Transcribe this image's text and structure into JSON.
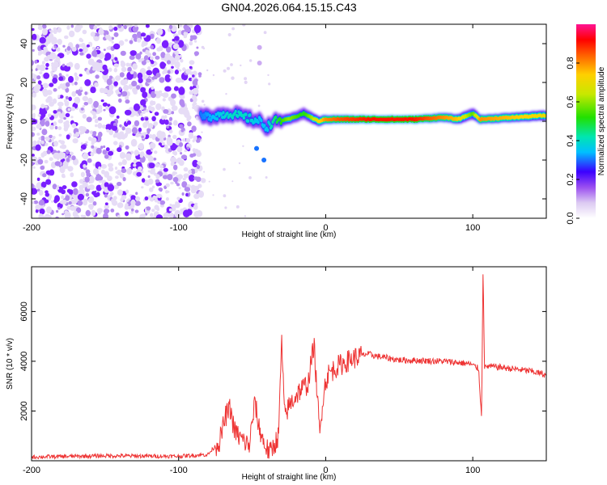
{
  "figure_title": "GN04.2026.064.15.15.C43",
  "chart_data": [
    {
      "type": "heatmap",
      "title": "GN04.2026.064.15.15.C43",
      "xlabel": "Height of straight line (km)",
      "ylabel": "Frequency (Hz)",
      "xlim": [
        -200,
        150
      ],
      "ylim": [
        -50,
        50
      ],
      "xticks": [
        -200,
        -100,
        0,
        100
      ],
      "xtick_labels": [
        "-200",
        "-100",
        "0",
        "100"
      ],
      "yticks": [
        -40,
        -20,
        0,
        20,
        40
      ],
      "ytick_labels": [
        "-40",
        "-20",
        "0",
        "20",
        "40"
      ],
      "noise_region_x": [
        -200,
        -85
      ],
      "spectral_line": {
        "description": "dominant frequency track near 0-2 Hz",
        "x": [
          -85,
          -75,
          -65,
          -55,
          -45,
          -40,
          -35,
          -25,
          -15,
          -5,
          0,
          10,
          30,
          60,
          80,
          90,
          100,
          105,
          150
        ],
        "freq": [
          2,
          3,
          4,
          2,
          0,
          -3,
          0,
          1,
          4,
          0,
          1,
          1,
          1,
          1,
          2,
          1,
          4,
          1,
          3
        ],
        "amplitude": [
          0.3,
          0.35,
          0.4,
          0.4,
          0.35,
          0.35,
          0.45,
          0.6,
          0.5,
          0.7,
          0.8,
          0.85,
          0.9,
          0.9,
          0.8,
          0.75,
          0.55,
          0.8,
          0.7
        ]
      },
      "colorbar": {
        "label": "Normalized spectral amplitude",
        "range": [
          0,
          1
        ],
        "ticks": [
          0.0,
          0.2,
          0.4,
          0.6,
          0.8
        ],
        "tick_labels": [
          "0.0",
          "0.2",
          "0.4",
          "0.6",
          "0.8"
        ]
      }
    },
    {
      "type": "line",
      "xlabel": "Height of straight line (km)",
      "ylabel": "SNR (10 * v/v)",
      "xlim": [
        -200,
        150
      ],
      "ylim": [
        0,
        7800
      ],
      "xticks": [
        -200,
        -100,
        0,
        100
      ],
      "xtick_labels": [
        "-200",
        "-100",
        "0",
        "100"
      ],
      "yticks": [
        2000,
        4000,
        6000
      ],
      "ytick_labels": [
        "2000",
        "4000",
        "6000"
      ],
      "series": [
        {
          "name": "SNR",
          "color": "#ee3333",
          "x": [
            -200,
            -150,
            -100,
            -80,
            -72,
            -68,
            -65,
            -62,
            -58,
            -52,
            -48,
            -46,
            -42,
            -38,
            -32,
            -30,
            -28,
            -24,
            -18,
            -12,
            -8,
            -4,
            -2,
            0,
            2,
            8,
            18,
            28,
            35,
            50,
            80,
            98,
            104,
            106,
            107,
            108,
            110,
            120,
            140,
            150
          ],
          "y": [
            150,
            200,
            180,
            250,
            800,
            1800,
            2100,
            1200,
            900,
            600,
            2400,
            1500,
            700,
            300,
            1000,
            4900,
            1800,
            2300,
            2800,
            3100,
            4700,
            1000,
            2500,
            3200,
            3500,
            3800,
            4100,
            4300,
            4200,
            4050,
            4000,
            3900,
            3700,
            1700,
            7800,
            3700,
            3800,
            3750,
            3600,
            3450
          ]
        }
      ]
    }
  ]
}
